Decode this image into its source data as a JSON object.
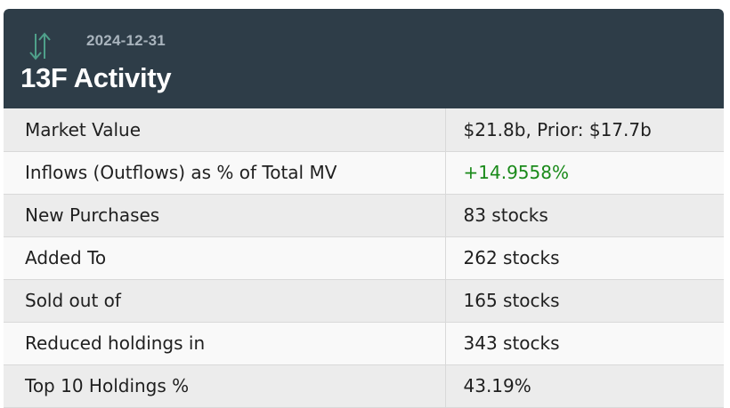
{
  "header": {
    "date": "2024-12-31",
    "title": "13F Activity",
    "icon": "up-down-arrows-icon",
    "icon_color": "#4fa08a",
    "background": "#2e3d48"
  },
  "rows": [
    {
      "label": "Market Value",
      "value": "$21.8b, Prior: $17.7b"
    },
    {
      "label": "Inflows (Outflows) as % of Total MV",
      "value": "+14.9558%"
    },
    {
      "label": "New Purchases",
      "value": "83 stocks"
    },
    {
      "label": "Added To",
      "value": "262 stocks"
    },
    {
      "label": "Sold out of",
      "value": "165 stocks"
    },
    {
      "label": "Reduced holdings in",
      "value": "343 stocks"
    },
    {
      "label": "Top 10 Holdings %",
      "value": "43.19%"
    }
  ],
  "colors": {
    "positive": "#1a8a1a"
  }
}
